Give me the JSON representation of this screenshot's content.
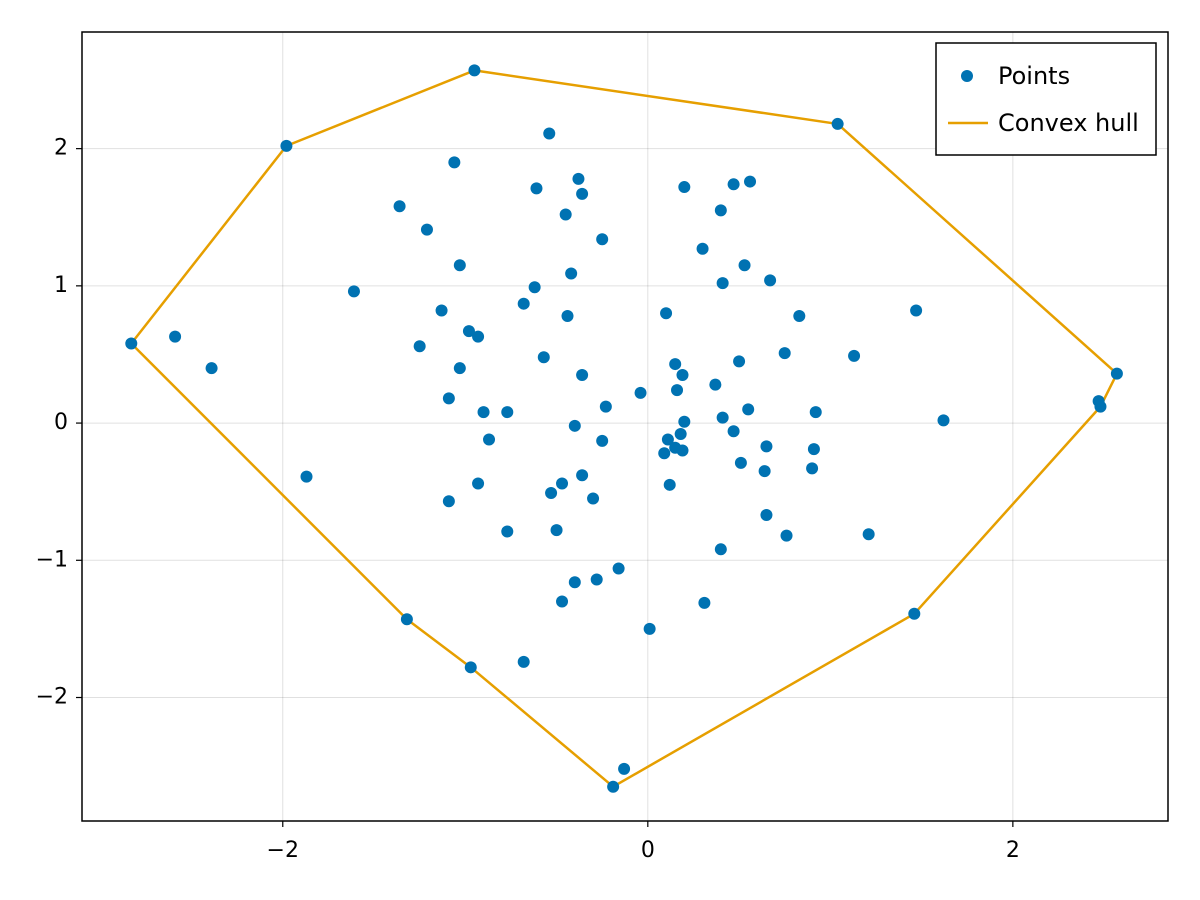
{
  "chart_data": {
    "type": "scatter",
    "title": "",
    "xlabel": "",
    "ylabel": "",
    "xlim": [
      -3.1,
      2.85
    ],
    "ylim": [
      -2.9,
      2.85
    ],
    "xticks": [
      -2,
      0,
      2
    ],
    "xtick_labels": [
      "−2",
      "0",
      "2"
    ],
    "yticks": [
      -2,
      -1,
      0,
      1,
      2
    ],
    "ytick_labels": [
      "−2",
      "−1",
      "0",
      "1",
      "2"
    ],
    "grid": true,
    "legend_position": "top-right",
    "series": [
      {
        "name": "Points",
        "kind": "scatter",
        "color": "#0072b2",
        "points": [
          [
            -0.95,
            2.57
          ],
          [
            -0.54,
            2.11
          ],
          [
            1.04,
            2.18
          ],
          [
            -1.98,
            2.02
          ],
          [
            -1.06,
            1.9
          ],
          [
            -0.38,
            1.78
          ],
          [
            -0.61,
            1.71
          ],
          [
            -0.36,
            1.67
          ],
          [
            0.2,
            1.72
          ],
          [
            0.47,
            1.74
          ],
          [
            0.56,
            1.76
          ],
          [
            -1.36,
            1.58
          ],
          [
            -0.45,
            1.52
          ],
          [
            0.4,
            1.55
          ],
          [
            -1.21,
            1.41
          ],
          [
            -0.25,
            1.34
          ],
          [
            0.3,
            1.27
          ],
          [
            -1.03,
            1.15
          ],
          [
            -0.42,
            1.09
          ],
          [
            0.53,
            1.15
          ],
          [
            0.67,
            1.04
          ],
          [
            -1.61,
            0.96
          ],
          [
            -0.62,
            0.99
          ],
          [
            0.41,
            1.02
          ],
          [
            -0.68,
            0.87
          ],
          [
            -1.13,
            0.82
          ],
          [
            -0.44,
            0.78
          ],
          [
            0.1,
            0.8
          ],
          [
            0.83,
            0.78
          ],
          [
            1.47,
            0.82
          ],
          [
            -2.59,
            0.63
          ],
          [
            -0.98,
            0.67
          ],
          [
            -0.93,
            0.63
          ],
          [
            -2.83,
            0.58
          ],
          [
            -1.25,
            0.56
          ],
          [
            -0.57,
            0.48
          ],
          [
            0.75,
            0.51
          ],
          [
            1.13,
            0.49
          ],
          [
            -2.39,
            0.4
          ],
          [
            -1.03,
            0.4
          ],
          [
            0.15,
            0.43
          ],
          [
            0.5,
            0.45
          ],
          [
            -0.36,
            0.35
          ],
          [
            0.19,
            0.35
          ],
          [
            2.57,
            0.36
          ],
          [
            -0.04,
            0.22
          ],
          [
            0.16,
            0.24
          ],
          [
            0.37,
            0.28
          ],
          [
            2.47,
            0.16
          ],
          [
            -1.09,
            0.18
          ],
          [
            2.48,
            0.12
          ],
          [
            -0.23,
            0.12
          ],
          [
            -0.9,
            0.08
          ],
          [
            -0.77,
            0.08
          ],
          [
            0.55,
            0.1
          ],
          [
            0.92,
            0.08
          ],
          [
            0.2,
            0.01
          ],
          [
            0.41,
            0.04
          ],
          [
            1.62,
            0.02
          ],
          [
            -0.4,
            -0.02
          ],
          [
            0.47,
            -0.06
          ],
          [
            0.18,
            -0.08
          ],
          [
            -0.87,
            -0.12
          ],
          [
            -0.25,
            -0.13
          ],
          [
            0.11,
            -0.12
          ],
          [
            0.15,
            -0.18
          ],
          [
            0.19,
            -0.2
          ],
          [
            0.09,
            -0.22
          ],
          [
            0.65,
            -0.17
          ],
          [
            0.91,
            -0.19
          ],
          [
            0.51,
            -0.29
          ],
          [
            0.64,
            -0.35
          ],
          [
            0.9,
            -0.33
          ],
          [
            -1.87,
            -0.39
          ],
          [
            -0.93,
            -0.44
          ],
          [
            -0.47,
            -0.44
          ],
          [
            -0.36,
            -0.38
          ],
          [
            0.12,
            -0.45
          ],
          [
            -0.53,
            -0.51
          ],
          [
            -0.3,
            -0.55
          ],
          [
            -1.09,
            -0.57
          ],
          [
            0.65,
            -0.67
          ],
          [
            -0.5,
            -0.78
          ],
          [
            -0.77,
            -0.79
          ],
          [
            0.76,
            -0.82
          ],
          [
            1.21,
            -0.81
          ],
          [
            0.4,
            -0.92
          ],
          [
            -0.16,
            -1.06
          ],
          [
            -0.4,
            -1.16
          ],
          [
            -0.28,
            -1.14
          ],
          [
            -0.47,
            -1.3
          ],
          [
            0.31,
            -1.31
          ],
          [
            -1.32,
            -1.43
          ],
          [
            1.46,
            -1.39
          ],
          [
            0.01,
            -1.5
          ],
          [
            -0.68,
            -1.74
          ],
          [
            -0.97,
            -1.78
          ],
          [
            -0.13,
            -2.52
          ],
          [
            -0.19,
            -2.65
          ]
        ]
      },
      {
        "name": "Convex hull",
        "kind": "line",
        "color": "#e69f00",
        "points": [
          [
            -0.95,
            2.57
          ],
          [
            1.04,
            2.18
          ],
          [
            2.57,
            0.36
          ],
          [
            2.48,
            0.12
          ],
          [
            1.46,
            -1.39
          ],
          [
            -0.19,
            -2.65
          ],
          [
            -0.97,
            -1.78
          ],
          [
            -1.32,
            -1.43
          ],
          [
            -2.83,
            0.58
          ],
          [
            -1.98,
            2.02
          ],
          [
            -0.95,
            2.57
          ]
        ]
      }
    ]
  }
}
